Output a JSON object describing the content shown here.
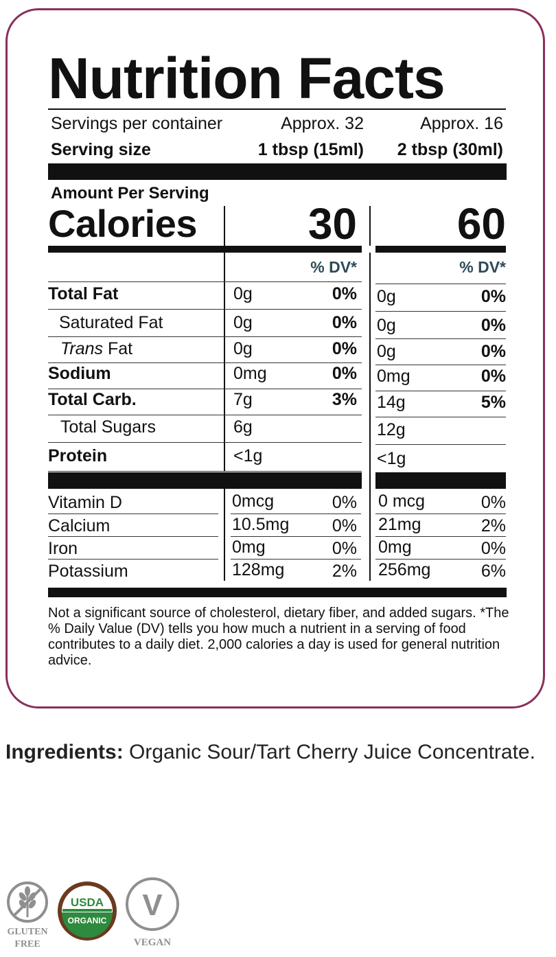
{
  "label": {
    "title": "Nutrition Facts",
    "servings_label": "Servings per container",
    "servings_1": "Approx. 32",
    "servings_2": "Approx. 16",
    "serving_size_label": "Serving size",
    "serving_size_1": "1 tbsp (15ml)",
    "serving_size_2": "2 tbsp (30ml)",
    "amount_per_serving": "Amount Per Serving",
    "calories_label": "Calories",
    "calories_1": "30",
    "calories_2": "60",
    "dv_header": "% DV*",
    "nutrients": [
      {
        "name": "Total Fat",
        "a1": "0g",
        "d1": "0%",
        "a2": "0g",
        "d2": "0%"
      },
      {
        "name": "Saturated Fat",
        "a1": "0g",
        "d1": "0%",
        "a2": "0g",
        "d2": "0%"
      },
      {
        "name_italic": "Trans",
        "name_rest": " Fat",
        "a1": "0g",
        "d1": "0%",
        "a2": "0g",
        "d2": "0%"
      },
      {
        "name": "Sodium",
        "a1": "0mg",
        "d1": "0%",
        "a2": "0mg",
        "d2": "0%"
      },
      {
        "name": "Total Carb.",
        "a1": "7g",
        "d1": "3%",
        "a2": "14g",
        "d2": "5%"
      },
      {
        "name": "Total Sugars",
        "a1": "6g",
        "d1": "",
        "a2": "12g",
        "d2": ""
      },
      {
        "name": "Protein",
        "a1": "<1g",
        "d1": "",
        "a2": "<1g",
        "d2": ""
      }
    ],
    "vitamins": [
      {
        "name": "Vitamin D",
        "a1": "0mcg",
        "d1": "0%",
        "a2": "0 mcg",
        "d2": "0%"
      },
      {
        "name": "Calcium",
        "a1": "10.5mg",
        "d1": "0%",
        "a2": "21mg",
        "d2": "2%"
      },
      {
        "name": "Iron",
        "a1": "0mg",
        "d1": "0%",
        "a2": "0mg",
        "d2": "0%"
      },
      {
        "name": "Potassium",
        "a1": "128mg",
        "d1": "2%",
        "a2": "256mg",
        "d2": "6%"
      }
    ],
    "footnote": "Not a significant source of cholesterol, dietary fiber, and added sugars. *The  % Daily Value (DV) tells you how much a nutrient in a serving of food contributes to a daily diet. 2,000 calories a day is used for general nutrition advice."
  },
  "ingredients": {
    "label": "Ingredients:",
    "text": " Organic Sour/Tart Cherry Juice Concentrate."
  },
  "badges": {
    "gluten_free_line1": "GLUTEN",
    "gluten_free_line2": "FREE",
    "usda_top": "USDA",
    "usda_bottom": "ORGANIC",
    "vegan_letter": "V",
    "vegan_label": "VEGAN"
  },
  "colors": {
    "border": "#8a2f5b",
    "dv_text": "#2f4a57",
    "usda_green": "#2e8a3e",
    "usda_brown": "#6b3a1f",
    "badge_gray": "#8f8f8f"
  }
}
